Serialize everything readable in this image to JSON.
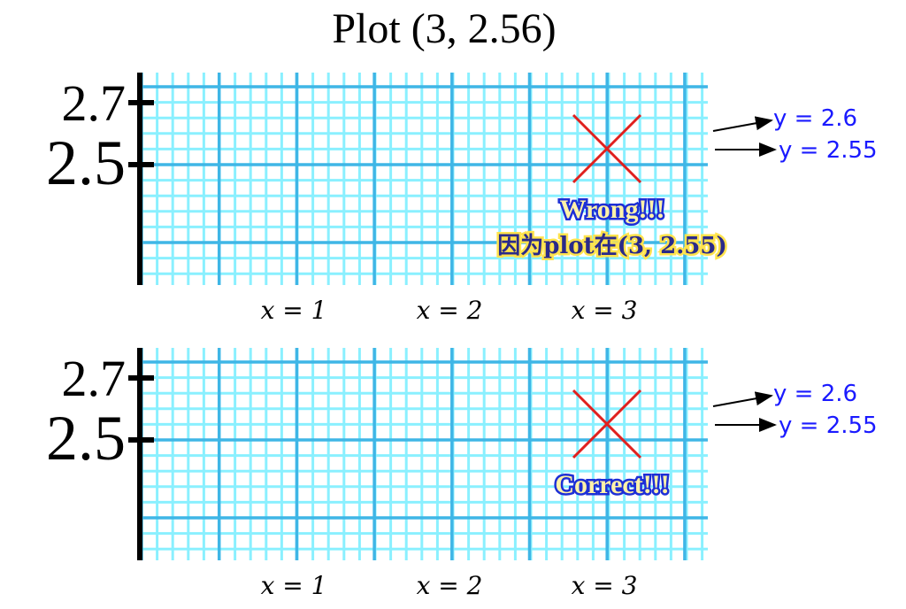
{
  "title": "Plot (3, 2.56)",
  "panels": [
    {
      "y_labels": [
        "2.7",
        "2.5"
      ],
      "x_labels": [
        "x = 1",
        "x = 2",
        "x = 3"
      ],
      "annotations": [
        "y = 2.6",
        "y = 2.55"
      ],
      "message": [
        "Wrong!!!",
        "因为plot在(3, 2.55)"
      ]
    },
    {
      "y_labels": [
        "2.7",
        "2.5"
      ],
      "x_labels": [
        "x = 1",
        "x = 2",
        "x = 3"
      ],
      "annotations": [
        "y = 2.6",
        "y = 2.55"
      ],
      "message": [
        "Correct!!!"
      ]
    }
  ]
}
